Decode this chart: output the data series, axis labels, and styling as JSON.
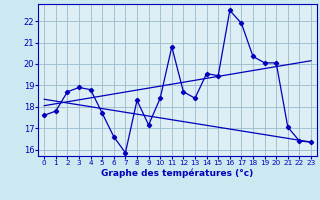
{
  "xlabel": "Graphe des températures (°c)",
  "bg_color": "#cce8f0",
  "line_color": "#0000bb",
  "grid_color": "#99bbcc",
  "axis_bg": "#ddeef5",
  "xlim": [
    -0.5,
    23.5
  ],
  "ylim": [
    15.7,
    22.8
  ],
  "xticks": [
    0,
    1,
    2,
    3,
    4,
    5,
    6,
    7,
    8,
    9,
    10,
    11,
    12,
    13,
    14,
    15,
    16,
    17,
    18,
    19,
    20,
    21,
    22,
    23
  ],
  "yticks": [
    16,
    17,
    18,
    19,
    20,
    21,
    22
  ],
  "line1_x": [
    0,
    1,
    2,
    3,
    4,
    5,
    6,
    7,
    8,
    9,
    10,
    11,
    12,
    13,
    14,
    15,
    16,
    17,
    18,
    19,
    20,
    21,
    22,
    23
  ],
  "line1_y": [
    17.6,
    17.8,
    18.7,
    18.9,
    18.8,
    17.7,
    16.6,
    15.85,
    18.3,
    17.15,
    18.4,
    20.8,
    18.7,
    18.4,
    19.55,
    19.45,
    22.5,
    21.9,
    20.35,
    20.05,
    20.05,
    17.05,
    16.4,
    16.35
  ],
  "line2_x": [
    0,
    23
  ],
  "line2_y": [
    18.05,
    20.15
  ],
  "line3_x": [
    0,
    23
  ],
  "line3_y": [
    18.35,
    16.35
  ]
}
